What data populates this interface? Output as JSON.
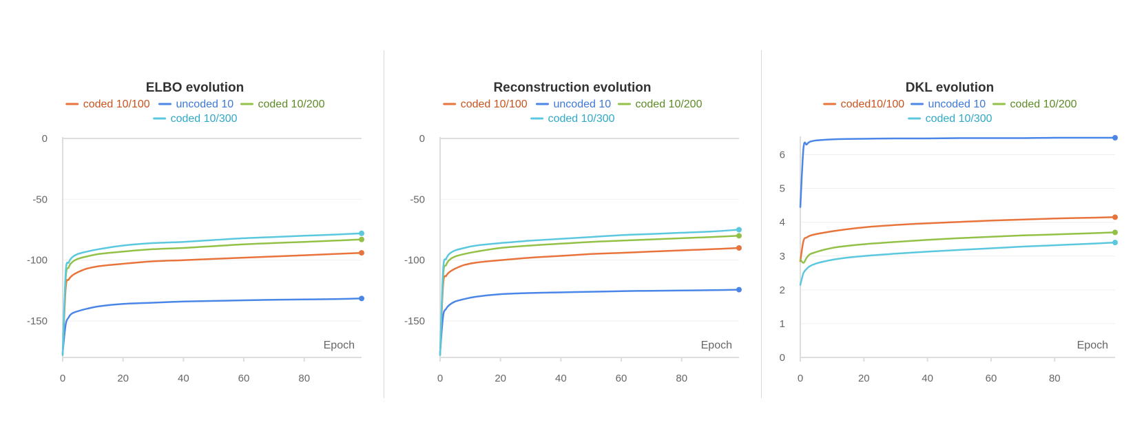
{
  "colors": {
    "coded_100": "#e8743b",
    "uncoded": "#4a86e8",
    "coded_200": "#93c047",
    "coded_300": "#5bc8df",
    "legend_text_coded_100": "#c8531e",
    "legend_text_uncoded": "#3d78d8",
    "legend_text_coded_200": "#5e8a25",
    "legend_text_coded_300": "#2fa9c4"
  },
  "chart_data": [
    {
      "type": "line",
      "title": "ELBO evolution",
      "xlabel": "Epoch",
      "ylabel": "",
      "xlim": [
        0,
        99
      ],
      "ylim": [
        -180,
        0
      ],
      "xticks": [
        "0",
        "20",
        "40",
        "60",
        "80"
      ],
      "yticks": [
        "0",
        "-50",
        "-100",
        "-150"
      ],
      "legend": [
        "coded 10/100",
        "uncoded 10",
        "coded 10/200",
        "coded 10/300"
      ],
      "series": [
        {
          "name": "coded 10/100",
          "color_key": "coded_100",
          "x": [
            0,
            1,
            2,
            3,
            5,
            8,
            12,
            20,
            30,
            40,
            50,
            60,
            70,
            80,
            90,
            99
          ],
          "values": [
            -178,
            -123,
            -116,
            -113,
            -110,
            -107,
            -105,
            -103,
            -101,
            -100,
            -99,
            -98,
            -97,
            -96,
            -95,
            -94
          ]
        },
        {
          "name": "uncoded 10",
          "color_key": "uncoded",
          "x": [
            0,
            1,
            2,
            3,
            5,
            8,
            12,
            20,
            30,
            40,
            50,
            60,
            70,
            80,
            90,
            99
          ],
          "values": [
            -176,
            -153,
            -147,
            -144,
            -142,
            -140,
            -138,
            -136,
            -135,
            -134,
            -133.5,
            -133,
            -132.6,
            -132.3,
            -132,
            -131.5
          ]
        },
        {
          "name": "coded 10/200",
          "color_key": "coded_200",
          "x": [
            0,
            1,
            2,
            3,
            5,
            8,
            12,
            20,
            30,
            40,
            50,
            60,
            70,
            80,
            90,
            99
          ],
          "values": [
            -178,
            -115,
            -106,
            -102,
            -99,
            -97,
            -95,
            -93,
            -91,
            -90,
            -88.5,
            -87,
            -86,
            -85,
            -84,
            -83
          ]
        },
        {
          "name": "coded 10/300",
          "color_key": "coded_300",
          "x": [
            0,
            1,
            2,
            3,
            5,
            8,
            12,
            20,
            30,
            40,
            50,
            60,
            70,
            80,
            90,
            99
          ],
          "values": [
            -178,
            -110,
            -102,
            -98,
            -95,
            -93,
            -91,
            -88,
            -86,
            -85,
            -83.5,
            -82,
            -81,
            -80,
            -79,
            -78
          ]
        }
      ]
    },
    {
      "type": "line",
      "title": "Reconstruction evolution",
      "xlabel": "Epoch",
      "ylabel": "",
      "xlim": [
        0,
        99
      ],
      "ylim": [
        -180,
        0
      ],
      "xticks": [
        "0",
        "20",
        "40",
        "60",
        "80"
      ],
      "yticks": [
        "0",
        "-50",
        "-100",
        "-150"
      ],
      "legend": [
        "coded 10/100",
        "uncoded 10",
        "coded 10/200",
        "coded 10/300"
      ],
      "series": [
        {
          "name": "coded 10/100",
          "color_key": "coded_100",
          "x": [
            0,
            1,
            2,
            3,
            5,
            8,
            12,
            20,
            30,
            40,
            50,
            60,
            70,
            80,
            90,
            99
          ],
          "values": [
            -178,
            -120,
            -113,
            -110,
            -107,
            -104,
            -102,
            -100,
            -98,
            -96.5,
            -95,
            -94,
            -93,
            -92,
            -91,
            -90
          ]
        },
        {
          "name": "uncoded 10",
          "color_key": "uncoded",
          "x": [
            0,
            1,
            2,
            3,
            5,
            8,
            12,
            20,
            30,
            40,
            50,
            60,
            70,
            80,
            90,
            99
          ],
          "values": [
            -176,
            -146,
            -140,
            -137,
            -134,
            -132,
            -130,
            -128,
            -127,
            -126.5,
            -126,
            -125.5,
            -125.2,
            -125,
            -124.7,
            -124.3
          ]
        },
        {
          "name": "coded 10/200",
          "color_key": "coded_200",
          "x": [
            0,
            1,
            2,
            3,
            5,
            8,
            12,
            20,
            30,
            40,
            50,
            60,
            70,
            80,
            90,
            99
          ],
          "values": [
            -178,
            -113,
            -104,
            -100,
            -97,
            -95,
            -93,
            -90,
            -88,
            -86.5,
            -85,
            -84,
            -83,
            -82,
            -81,
            -80
          ]
        },
        {
          "name": "coded 10/300",
          "color_key": "coded_300",
          "x": [
            0,
            1,
            2,
            3,
            5,
            8,
            12,
            20,
            30,
            40,
            50,
            60,
            70,
            80,
            90,
            99
          ],
          "values": [
            -178,
            -108,
            -99,
            -95,
            -92,
            -90,
            -88,
            -86,
            -84,
            -82.5,
            -81,
            -79.5,
            -78.5,
            -77.5,
            -76.5,
            -75
          ]
        }
      ]
    },
    {
      "type": "line",
      "title": "DKL evolution",
      "xlabel": "Epoch",
      "ylabel": "",
      "xlim": [
        0,
        99
      ],
      "ylim": [
        0,
        6.5
      ],
      "xticks": [
        "0",
        "20",
        "40",
        "60",
        "80"
      ],
      "yticks": [
        "0",
        "1",
        "2",
        "3",
        "4",
        "5",
        "6"
      ],
      "legend": [
        "coded10/100",
        "uncoded 10",
        "coded 10/200",
        "coded 10/300"
      ],
      "series": [
        {
          "name": "coded10/100",
          "color_key": "coded_100",
          "x": [
            0,
            1,
            2,
            3,
            5,
            8,
            12,
            20,
            30,
            40,
            50,
            60,
            70,
            80,
            90,
            99
          ],
          "values": [
            2.85,
            3.45,
            3.55,
            3.6,
            3.65,
            3.7,
            3.76,
            3.85,
            3.92,
            3.97,
            4.01,
            4.05,
            4.08,
            4.11,
            4.13,
            4.15
          ]
        },
        {
          "name": "uncoded 10",
          "color_key": "uncoded",
          "x": [
            0,
            1,
            2,
            3,
            5,
            8,
            12,
            20,
            30,
            40,
            50,
            60,
            70,
            80,
            90,
            99
          ],
          "values": [
            4.45,
            6.2,
            6.3,
            6.38,
            6.42,
            6.44,
            6.46,
            6.47,
            6.48,
            6.48,
            6.49,
            6.49,
            6.49,
            6.5,
            6.5,
            6.5
          ]
        },
        {
          "name": "coded 10/200",
          "color_key": "coded_200",
          "x": [
            0,
            1,
            2,
            3,
            5,
            8,
            12,
            20,
            30,
            40,
            50,
            60,
            70,
            80,
            90,
            99
          ],
          "values": [
            2.9,
            2.8,
            2.95,
            3.05,
            3.12,
            3.2,
            3.27,
            3.35,
            3.42,
            3.48,
            3.53,
            3.57,
            3.61,
            3.64,
            3.67,
            3.7
          ]
        },
        {
          "name": "coded 10/300",
          "color_key": "coded_300",
          "x": [
            0,
            1,
            2,
            3,
            5,
            8,
            12,
            20,
            30,
            40,
            50,
            60,
            70,
            80,
            90,
            99
          ],
          "values": [
            2.15,
            2.5,
            2.62,
            2.7,
            2.78,
            2.85,
            2.92,
            3.0,
            3.07,
            3.13,
            3.18,
            3.23,
            3.28,
            3.32,
            3.36,
            3.4
          ]
        }
      ]
    }
  ]
}
